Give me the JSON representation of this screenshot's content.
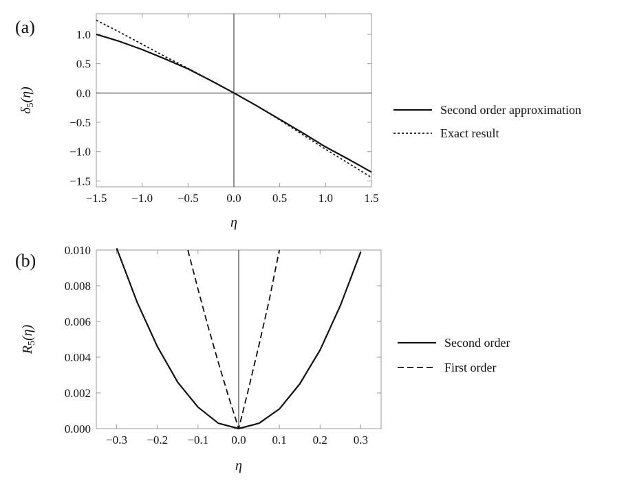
{
  "chart_data": [
    {
      "type": "line",
      "panel_label": "(a)",
      "xlabel": "η",
      "ylabel_main": "δ",
      "ylabel_sub": "5",
      "ylabel_arg": "(η)",
      "xlim": [
        -1.5,
        1.5
      ],
      "ylim": [
        -1.6,
        1.35
      ],
      "xticks": [
        -1.5,
        -1.0,
        -0.5,
        0.0,
        0.5,
        1.0,
        1.5
      ],
      "xtick_labels": [
        "−1.5",
        "−1.0",
        "−0.5",
        "0.0",
        "0.5",
        "1.0",
        "1.5"
      ],
      "yticks": [
        1.0,
        0.5,
        0.0,
        -0.5,
        -1.0,
        -1.5
      ],
      "ytick_labels": [
        "1.0",
        "0.5",
        "0.0",
        "−0.5",
        "−1.0",
        "−1.5"
      ],
      "grid": false,
      "legend_position": "right",
      "series": [
        {
          "name": "Second order approximation",
          "style": "solid",
          "x": [
            -1.5,
            -1.25,
            -1.0,
            -0.75,
            -0.5,
            -0.25,
            0.0,
            0.25,
            0.5,
            0.75,
            1.0,
            1.25,
            1.5
          ],
          "y": [
            1.0,
            0.88,
            0.74,
            0.58,
            0.41,
            0.21,
            0.0,
            -0.22,
            -0.45,
            -0.68,
            -0.92,
            -1.13,
            -1.35
          ]
        },
        {
          "name": "Exact result",
          "style": "dotted",
          "x": [
            -1.5,
            -1.25,
            -1.0,
            -0.75,
            -0.5,
            -0.25,
            0.0,
            0.25,
            0.5,
            0.75,
            1.0,
            1.25,
            1.5
          ],
          "y": [
            1.24,
            1.04,
            0.83,
            0.62,
            0.42,
            0.21,
            0.0,
            -0.22,
            -0.46,
            -0.71,
            -0.96,
            -1.2,
            -1.44
          ]
        }
      ]
    },
    {
      "type": "line",
      "panel_label": "(b)",
      "xlabel": "η",
      "ylabel_main": "R",
      "ylabel_sub": "5",
      "ylabel_arg": "(η)",
      "xlim": [
        -0.35,
        0.35
      ],
      "ylim": [
        0.0,
        0.01
      ],
      "xticks": [
        -0.3,
        -0.2,
        -0.1,
        0.0,
        0.1,
        0.2,
        0.3
      ],
      "xtick_labels": [
        "−0.3",
        "−0.2",
        "−0.1",
        "0.0",
        "0.1",
        "0.2",
        "0.3"
      ],
      "yticks": [
        0.0,
        0.002,
        0.004,
        0.006,
        0.008,
        0.01
      ],
      "ytick_labels": [
        "0.000",
        "0.002",
        "0.004",
        "0.006",
        "0.008",
        "0.010"
      ],
      "grid": false,
      "legend_position": "right",
      "series": [
        {
          "name": "Second order",
          "style": "solid",
          "x": [
            -0.3,
            -0.25,
            -0.2,
            -0.15,
            -0.1,
            -0.05,
            0.0,
            0.05,
            0.1,
            0.15,
            0.2,
            0.25,
            0.3
          ],
          "y": [
            0.0101,
            0.0071,
            0.0046,
            0.0026,
            0.0012,
            0.0003,
            0.0,
            0.0003,
            0.0011,
            0.0025,
            0.0044,
            0.0069,
            0.0099
          ]
        },
        {
          "name": "First order",
          "style": "dashed",
          "x": [
            -0.125,
            -0.1,
            -0.075,
            -0.05,
            -0.025,
            0.0,
            0.025,
            0.05,
            0.075,
            0.1
          ],
          "y": [
            0.01,
            0.0078,
            0.0057,
            0.0037,
            0.0018,
            0.0,
            0.0023,
            0.0047,
            0.0072,
            0.01
          ]
        }
      ]
    }
  ]
}
